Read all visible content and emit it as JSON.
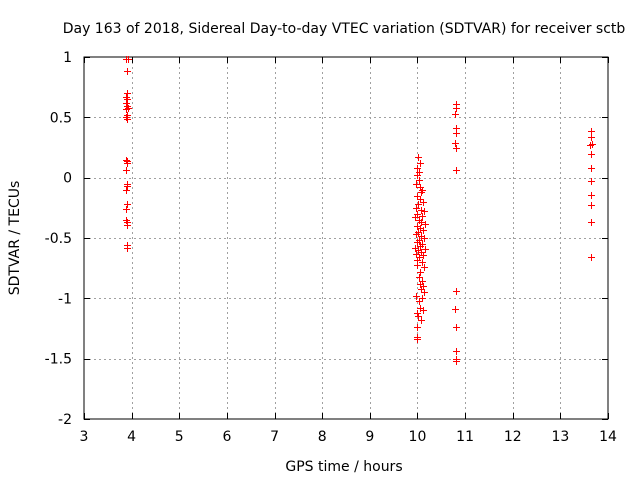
{
  "chart_data": {
    "type": "scatter",
    "title": "Day 163 of 2018, Sidereal Day-to-day VTEC variation (SDTVAR) for receiver sctb",
    "xlabel": "GPS time / hours",
    "ylabel": "SDTVAR / TECUs",
    "xlim": [
      3,
      14
    ],
    "ylim": [
      -2,
      1
    ],
    "x_ticks": [
      3,
      4,
      5,
      6,
      7,
      8,
      9,
      10,
      11,
      12,
      13,
      14
    ],
    "x_tick_labels": [
      "3",
      "4",
      "5",
      "6",
      "7",
      "8",
      "9",
      "10",
      "11",
      "12",
      "13",
      "14"
    ],
    "y_ticks": [
      1,
      0.5,
      0,
      -0.5,
      -1,
      -1.5,
      -2
    ],
    "y_tick_labels": [
      "1",
      "0.5",
      "0",
      "-0.5",
      "-1",
      "-1.5",
      "-2"
    ],
    "grid": true,
    "legend": "none",
    "marker": "plus",
    "marker_color": "#ff0000",
    "series": [
      {
        "name": "SDTVAR",
        "points": [
          [
            3.88,
            0.98
          ],
          [
            3.92,
            0.98
          ],
          [
            3.9,
            0.88
          ],
          [
            3.9,
            0.7
          ],
          [
            3.88,
            0.67
          ],
          [
            3.91,
            0.65
          ],
          [
            3.89,
            0.62
          ],
          [
            3.9,
            0.59
          ],
          [
            3.88,
            0.57
          ],
          [
            3.92,
            0.58
          ],
          [
            3.9,
            0.52
          ],
          [
            3.89,
            0.5
          ],
          [
            3.91,
            0.49
          ],
          [
            3.88,
            0.15
          ],
          [
            3.91,
            0.14
          ],
          [
            3.9,
            0.12
          ],
          [
            3.89,
            0.06
          ],
          [
            3.9,
            -0.05
          ],
          [
            3.89,
            -0.1
          ],
          [
            3.91,
            -0.07
          ],
          [
            3.9,
            -0.22
          ],
          [
            3.89,
            -0.26
          ],
          [
            3.88,
            -0.35
          ],
          [
            3.91,
            -0.37
          ],
          [
            3.9,
            -0.39
          ],
          [
            3.9,
            -0.56
          ],
          [
            3.91,
            -0.58
          ],
          [
            10.02,
            0.17
          ],
          [
            10.05,
            0.12
          ],
          [
            9.98,
            0.08
          ],
          [
            10.03,
            0.05
          ],
          [
            10.0,
            0.02
          ],
          [
            10.04,
            -0.02
          ],
          [
            9.97,
            -0.05
          ],
          [
            10.06,
            -0.08
          ],
          [
            10.1,
            -0.1
          ],
          [
            10.08,
            -0.12
          ],
          [
            9.99,
            -0.15
          ],
          [
            10.05,
            -0.18
          ],
          [
            10.12,
            -0.2
          ],
          [
            10.02,
            -0.22
          ],
          [
            9.96,
            -0.25
          ],
          [
            10.07,
            -0.27
          ],
          [
            10.14,
            -0.28
          ],
          [
            10.0,
            -0.3
          ],
          [
            10.1,
            -0.32
          ],
          [
            9.95,
            -0.33
          ],
          [
            10.03,
            -0.35
          ],
          [
            10.08,
            -0.37
          ],
          [
            10.15,
            -0.38
          ],
          [
            9.98,
            -0.4
          ],
          [
            10.05,
            -0.42
          ],
          [
            10.12,
            -0.43
          ],
          [
            10.01,
            -0.45
          ],
          [
            9.96,
            -0.47
          ],
          [
            10.07,
            -0.48
          ],
          [
            10.14,
            -0.5
          ],
          [
            10.03,
            -0.52
          ],
          [
            9.99,
            -0.53
          ],
          [
            10.1,
            -0.55
          ],
          [
            10.05,
            -0.57
          ],
          [
            9.94,
            -0.58
          ],
          [
            10.16,
            -0.59
          ],
          [
            10.02,
            -0.6
          ],
          [
            10.08,
            -0.62
          ],
          [
            9.97,
            -0.63
          ],
          [
            10.12,
            -0.64
          ],
          [
            10.04,
            -0.66
          ],
          [
            10.0,
            -0.68
          ],
          [
            10.09,
            -0.7
          ],
          [
            9.98,
            -0.72
          ],
          [
            10.13,
            -0.74
          ],
          [
            10.06,
            -0.78
          ],
          [
            10.03,
            -0.82
          ],
          [
            10.1,
            -0.86
          ],
          [
            10.05,
            -0.88
          ],
          [
            10.12,
            -0.9
          ],
          [
            10.08,
            -0.92
          ],
          [
            10.14,
            -0.95
          ],
          [
            9.96,
            -0.98
          ],
          [
            10.1,
            -1.0
          ],
          [
            10.04,
            -1.02
          ],
          [
            10.06,
            -1.08
          ],
          [
            9.99,
            -1.12
          ],
          [
            10.12,
            -1.1
          ],
          [
            10.02,
            -1.15
          ],
          [
            10.08,
            -1.18
          ],
          [
            9.98,
            -1.24
          ],
          [
            10.0,
            -1.32
          ],
          [
            9.99,
            -1.34
          ],
          [
            10.81,
            0.61
          ],
          [
            10.8,
            0.58
          ],
          [
            10.79,
            0.53
          ],
          [
            10.81,
            0.41
          ],
          [
            10.8,
            0.37
          ],
          [
            10.79,
            0.29
          ],
          [
            10.81,
            0.25
          ],
          [
            10.8,
            0.06
          ],
          [
            10.81,
            -0.94
          ],
          [
            10.79,
            -1.09
          ],
          [
            10.81,
            -1.24
          ],
          [
            10.8,
            -1.44
          ],
          [
            10.8,
            -1.5
          ],
          [
            10.81,
            -1.52
          ],
          [
            13.65,
            0.39
          ],
          [
            13.64,
            0.34
          ],
          [
            13.66,
            0.28
          ],
          [
            13.63,
            0.27
          ],
          [
            13.65,
            0.2
          ],
          [
            13.64,
            0.08
          ],
          [
            13.65,
            -0.03
          ],
          [
            13.65,
            -0.14
          ],
          [
            13.64,
            -0.23
          ],
          [
            13.65,
            -0.37
          ],
          [
            13.64,
            -0.66
          ]
        ]
      }
    ]
  }
}
